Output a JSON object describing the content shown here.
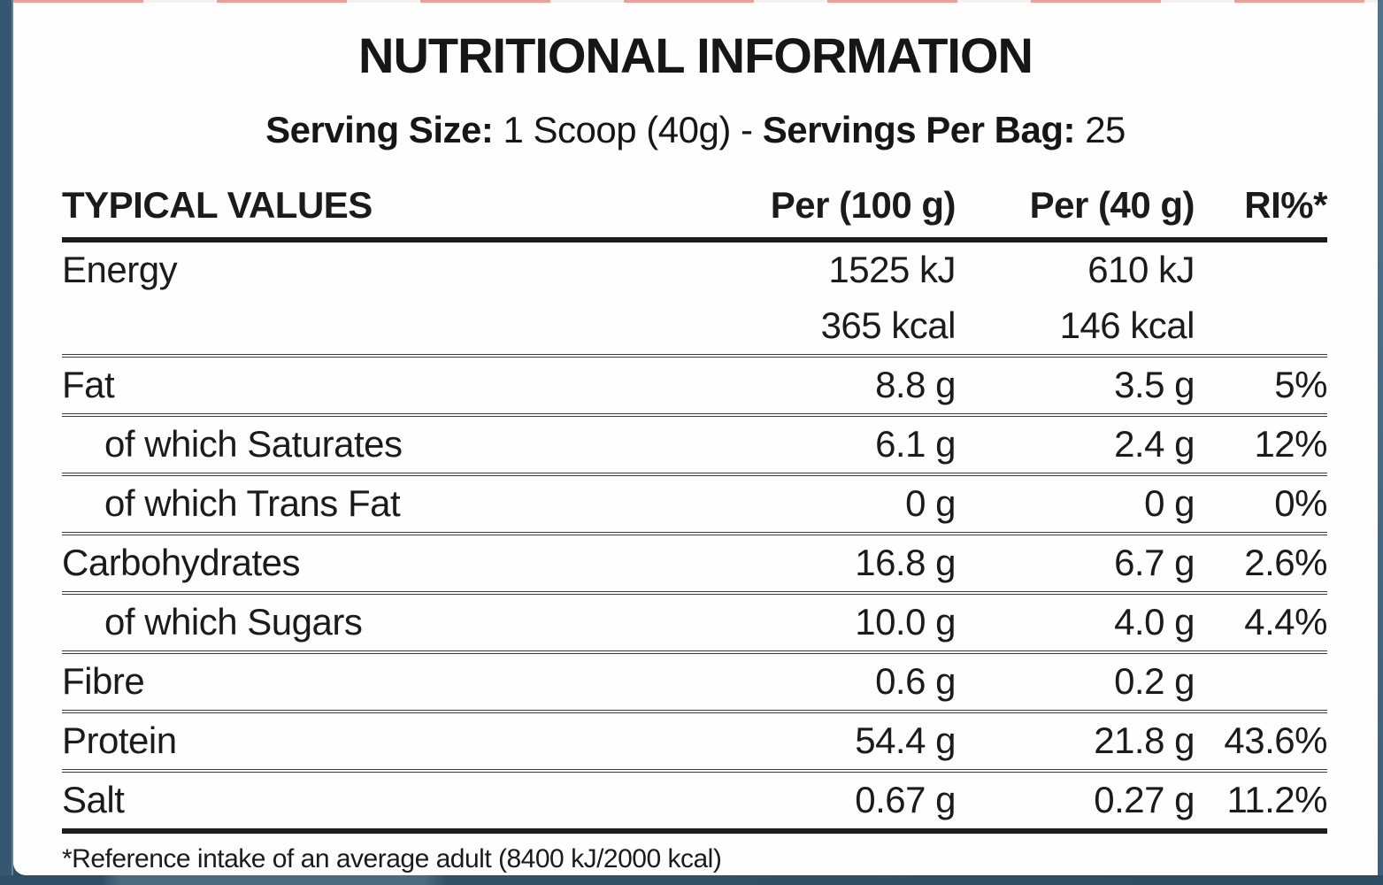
{
  "colors": {
    "frame_navy_top": "#122940",
    "frame_steel_mid": "#5f8098",
    "frame_bottom_bar": "#2f4f68",
    "frame_right_strip": "#4d7592",
    "top_dash_red": "#e8a19a",
    "label_background": "#fefefe",
    "text": "#1b1b1b"
  },
  "label": {
    "title": "NUTRITIONAL INFORMATION",
    "serving": {
      "size_label": "Serving Size:",
      "size_value": "1 Scoop (40g)",
      "separator": "-",
      "bag_label": "Servings Per Bag:",
      "bag_value": "25"
    },
    "footnote": "*Reference intake of an average adult (8400 kJ/2000 kcal)"
  },
  "table": {
    "headers": [
      "TYPICAL VALUES",
      "Per (100 g)",
      "Per (40 g)",
      "RI%*"
    ],
    "rows": [
      {
        "label": "Energy",
        "per_100g": "1525 kJ",
        "per_40g": "610 kJ",
        "ri_percent": ""
      },
      {
        "label": "",
        "per_100g": "365 kcal",
        "per_40g": "146 kcal",
        "ri_percent": ""
      },
      {
        "label": "Fat",
        "per_100g": "8.8 g",
        "per_40g": "3.5 g",
        "ri_percent": "5%"
      },
      {
        "label": "of which Saturates",
        "per_100g": "6.1 g",
        "per_40g": "2.4 g",
        "ri_percent": "12%"
      },
      {
        "label": "of which Trans Fat",
        "per_100g": "0 g",
        "per_40g": "0 g",
        "ri_percent": "0%"
      },
      {
        "label": "Carbohydrates",
        "per_100g": "16.8 g",
        "per_40g": "6.7 g",
        "ri_percent": "2.6%"
      },
      {
        "label": "of which Sugars",
        "per_100g": "10.0 g",
        "per_40g": "4.0 g",
        "ri_percent": "4.4%"
      },
      {
        "label": "Fibre",
        "per_100g": "0.6 g",
        "per_40g": "0.2 g",
        "ri_percent": ""
      },
      {
        "label": "Protein",
        "per_100g": "54.4 g",
        "per_40g": "21.8 g",
        "ri_percent": "43.6%"
      },
      {
        "label": "Salt",
        "per_100g": "0.67 g",
        "per_40g": "0.27 g",
        "ri_percent": "11.2%"
      }
    ]
  }
}
